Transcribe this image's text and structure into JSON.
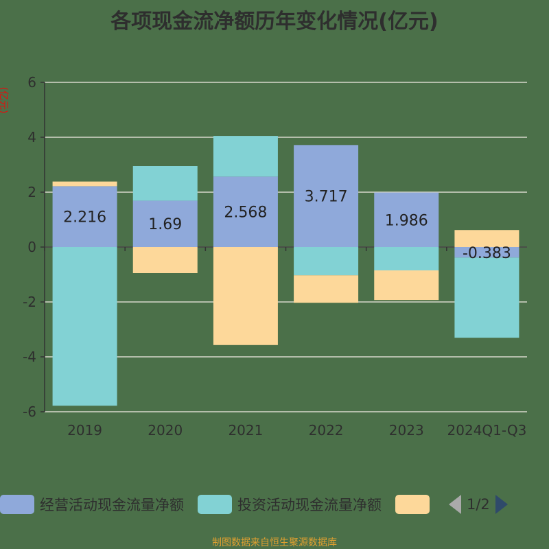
{
  "chart_data": {
    "type": "bar",
    "stacked": true,
    "title": "各项现金流净额历年变化情况(亿元)",
    "ylabel": "(亿元)",
    "xlabel": "",
    "ylim": [
      -6,
      6
    ],
    "yticks": [
      -6,
      -4,
      -2,
      0,
      2,
      4,
      6
    ],
    "grid": true,
    "legend_position": "bottom",
    "categories": [
      "2019",
      "2020",
      "2021",
      "2022",
      "2023",
      "2024Q1-Q3"
    ],
    "series": [
      {
        "name": "经营活动现金流量净额",
        "color": "#8fa9da",
        "values": [
          2.216,
          1.69,
          2.568,
          3.717,
          1.986,
          -0.383
        ],
        "labels": [
          "2.216",
          "1.69",
          "2.568",
          "3.717",
          "1.986",
          "-0.383"
        ]
      },
      {
        "name": "投资活动现金流量净额",
        "color": "#82d2d4",
        "values": [
          -5.78,
          1.26,
          1.48,
          -1.03,
          -0.85,
          -2.92
        ]
      },
      {
        "color": "#fdd89a",
        "values": [
          0.17,
          -0.95,
          -3.57,
          -1.0,
          -1.08,
          0.62
        ]
      }
    ]
  },
  "legend": {
    "page": "1/2"
  },
  "source": "制图数据来自恒生聚源数据库",
  "colors": {
    "background": "#4b7049",
    "ylabel": "#e01010",
    "source": "#e0a030"
  }
}
